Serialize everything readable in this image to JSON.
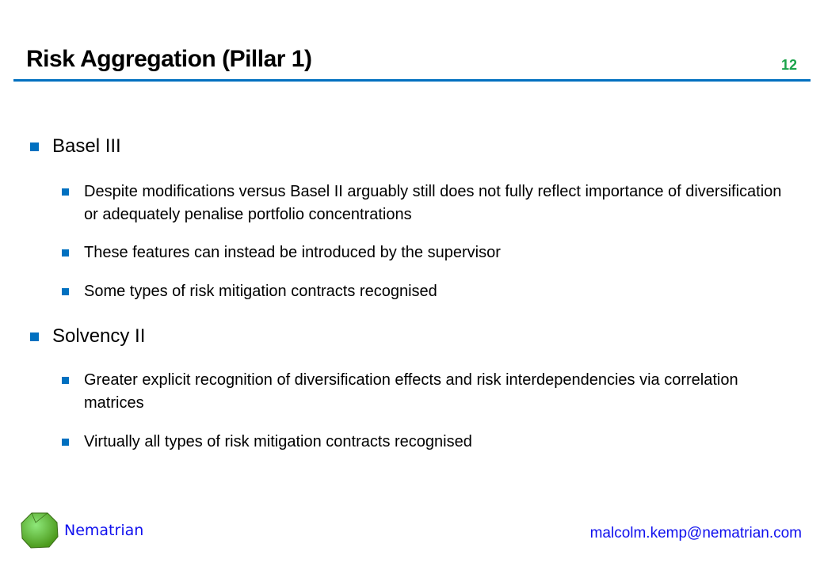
{
  "slide": {
    "title": "Risk Aggregation (Pillar 1)",
    "page_number": "12"
  },
  "bullets": [
    {
      "text": "Basel III",
      "sub": [
        "Despite modifications versus Basel II arguably still does not fully reflect importance of diversification or adequately penalise portfolio concentrations",
        "These features can instead be introduced by the supervisor",
        "Some types of risk mitigation contracts recognised"
      ]
    },
    {
      "text": "Solvency II",
      "sub": [
        "Greater explicit recognition of diversification effects and risk interdependencies via correlation matrices",
        "Virtually all types of risk mitigation contracts recognised"
      ]
    }
  ],
  "footer": {
    "brand": "Nematrian",
    "email": "malcolm.kemp@nematrian.com",
    "logo_icon": "green-polyhedron"
  },
  "colors": {
    "accent": "#0070c0",
    "page_number": "#1aa34a",
    "footer_text": "#1010ee"
  }
}
